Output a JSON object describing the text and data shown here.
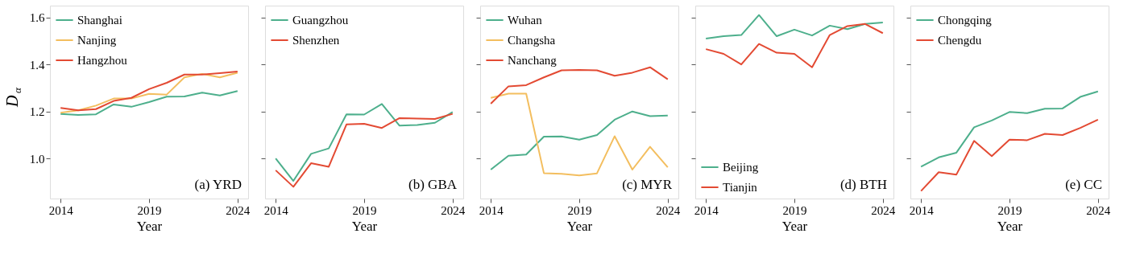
{
  "chart_data": [
    {
      "type": "line",
      "ylabel": "D$_{α}$",
      "xlabel": "Year",
      "annotations": [
        "(a) YRD"
      ],
      "legend": "top left",
      "grid": false,
      "xlim": [
        2013.4,
        2024.6
      ],
      "xticks": [
        2014,
        2019,
        2024
      ],
      "ylim": [
        0.83,
        1.65
      ],
      "yticks": [
        {
          "value": 1.0,
          "label": "1.0"
        },
        {
          "value": 1.2,
          "label": "1.2"
        },
        {
          "value": 1.4,
          "label": "1.4"
        },
        {
          "value": 1.6,
          "label": "1.6"
        }
      ],
      "x": [
        2014,
        2015,
        2016,
        2017,
        2018,
        2019,
        2020,
        2021,
        2022,
        2023,
        2024
      ],
      "series": [
        {
          "name": "Shanghai",
          "color": "#4daf8c",
          "values": [
            1.19,
            1.185,
            1.188,
            1.23,
            1.22,
            1.24,
            1.263,
            1.264,
            1.28,
            1.268,
            1.287
          ]
        },
        {
          "name": "Nanjing",
          "color": "#f3be5f",
          "values": [
            1.195,
            1.205,
            1.225,
            1.255,
            1.255,
            1.275,
            1.272,
            1.345,
            1.36,
            1.345,
            1.365
          ]
        },
        {
          "name": "Hangzhou",
          "color": "#e34a33",
          "values": [
            1.215,
            1.205,
            1.21,
            1.245,
            1.258,
            1.295,
            1.322,
            1.357,
            1.357,
            1.363,
            1.37
          ]
        }
      ]
    },
    {
      "type": "line",
      "xlabel": "Year",
      "annotations": [
        "(b) GBA"
      ],
      "legend": "top left",
      "grid": false,
      "tick_labels": "x",
      "xlim": [
        2013.4,
        2024.6
      ],
      "xticks": [
        2014,
        2019,
        2024
      ],
      "ylim": [
        0.83,
        1.65
      ],
      "yticks": [
        {
          "value": 1.0,
          "label": null
        },
        {
          "value": 1.2,
          "label": null
        },
        {
          "value": 1.4,
          "label": null
        },
        {
          "value": 1.6,
          "label": null
        }
      ],
      "x": [
        2014,
        2015,
        2016,
        2017,
        2018,
        2019,
        2020,
        2021,
        2022,
        2023,
        2024
      ],
      "series": [
        {
          "name": "Guangzhou",
          "color": "#4daf8c",
          "values": [
            1.0,
            0.905,
            1.02,
            1.043,
            1.188,
            1.187,
            1.232,
            1.14,
            1.143,
            1.152,
            1.198
          ]
        },
        {
          "name": "Shenzhen",
          "color": "#e34a33",
          "values": [
            0.95,
            0.88,
            0.98,
            0.965,
            1.145,
            1.148,
            1.13,
            1.172,
            1.17,
            1.168,
            1.19
          ]
        }
      ]
    },
    {
      "type": "line",
      "xlabel": "Year",
      "annotations": [
        "(c) MYR"
      ],
      "legend": "top left",
      "grid": false,
      "tick_labels": "x",
      "xlim": [
        2013.4,
        2024.6
      ],
      "xticks": [
        2014,
        2019,
        2024
      ],
      "ylim": [
        0.83,
        1.65
      ],
      "yticks": [
        {
          "value": 1.0,
          "label": null
        },
        {
          "value": 1.2,
          "label": null
        },
        {
          "value": 1.4,
          "label": null
        },
        {
          "value": 1.6,
          "label": null
        }
      ],
      "x": [
        2014,
        2015,
        2016,
        2017,
        2018,
        2019,
        2020,
        2021,
        2022,
        2023,
        2024
      ],
      "series": [
        {
          "name": "Wuhan",
          "color": "#4daf8c",
          "values": [
            0.953,
            1.012,
            1.017,
            1.093,
            1.094,
            1.08,
            1.1,
            1.165,
            1.2,
            1.18,
            1.183
          ]
        },
        {
          "name": "Changsha",
          "color": "#f3be5f",
          "values": [
            1.258,
            1.276,
            1.276,
            0.938,
            0.935,
            0.928,
            0.937,
            1.095,
            0.953,
            1.05,
            0.963
          ]
        },
        {
          "name": "Nanchang",
          "color": "#e34a33",
          "values": [
            1.233,
            1.307,
            1.312,
            1.345,
            1.375,
            1.377,
            1.375,
            1.352,
            1.365,
            1.388,
            1.337
          ]
        }
      ]
    },
    {
      "type": "line",
      "xlabel": "Year",
      "annotations": [
        "(d) BTH"
      ],
      "legend": "bottom left",
      "grid": false,
      "tick_labels": "x",
      "xlim": [
        2013.4,
        2024.6
      ],
      "xticks": [
        2014,
        2019,
        2024
      ],
      "ylim": [
        0.83,
        1.65
      ],
      "yticks": [
        {
          "value": 1.0,
          "label": null
        },
        {
          "value": 1.2,
          "label": null
        },
        {
          "value": 1.4,
          "label": null
        },
        {
          "value": 1.6,
          "label": null
        }
      ],
      "x": [
        2014,
        2015,
        2016,
        2017,
        2018,
        2019,
        2020,
        2021,
        2022,
        2023,
        2024
      ],
      "series": [
        {
          "name": "Beijing",
          "color": "#4daf8c",
          "values": [
            1.51,
            1.52,
            1.525,
            1.61,
            1.52,
            1.548,
            1.523,
            1.565,
            1.55,
            1.572,
            1.578
          ]
        },
        {
          "name": "Tianjin",
          "color": "#e34a33",
          "values": [
            1.465,
            1.445,
            1.4,
            1.487,
            1.45,
            1.445,
            1.388,
            1.525,
            1.563,
            1.572,
            1.533
          ]
        }
      ]
    },
    {
      "type": "line",
      "xlabel": "Year",
      "annotations": [
        "(e) CC"
      ],
      "legend": "top left",
      "grid": false,
      "tick_labels": "x",
      "xlim": [
        2013.4,
        2024.6
      ],
      "xticks": [
        2014,
        2019,
        2024
      ],
      "ylim": [
        0.83,
        1.65
      ],
      "yticks": [
        {
          "value": 1.0,
          "label": null
        },
        {
          "value": 1.2,
          "label": null
        },
        {
          "value": 1.4,
          "label": null
        },
        {
          "value": 1.6,
          "label": null
        }
      ],
      "x": [
        2014,
        2015,
        2016,
        2017,
        2018,
        2019,
        2020,
        2021,
        2022,
        2023,
        2024
      ],
      "series": [
        {
          "name": "Chongqing",
          "color": "#4daf8c",
          "values": [
            0.965,
            1.005,
            1.025,
            1.133,
            1.162,
            1.198,
            1.193,
            1.212,
            1.213,
            1.262,
            1.285
          ]
        },
        {
          "name": "Chengdu",
          "color": "#e34a33",
          "values": [
            0.862,
            0.942,
            0.932,
            1.075,
            1.01,
            1.08,
            1.078,
            1.105,
            1.1,
            1.13,
            1.165
          ]
        }
      ]
    }
  ]
}
